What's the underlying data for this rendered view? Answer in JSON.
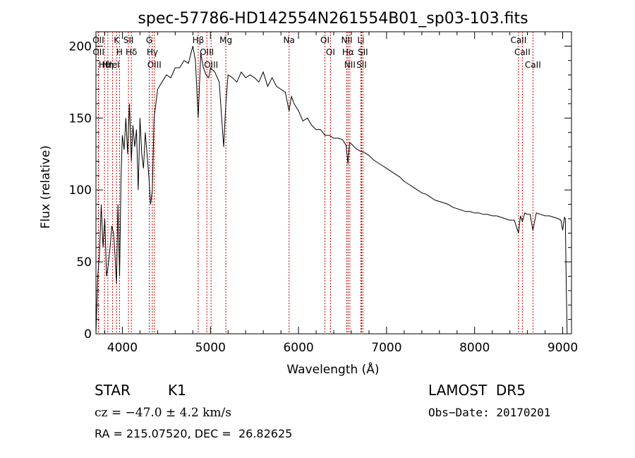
{
  "chart_data": {
    "type": "line",
    "title": "spec-57786-HD142554N261554B01_sp03-103.fits",
    "xlabel": "Wavelength (Å)",
    "ylabel": "Flux (relative)",
    "xlim": [
      3700,
      9100
    ],
    "ylim": [
      0,
      210
    ],
    "xticks": [
      4000,
      5000,
      6000,
      7000,
      8000,
      9000
    ],
    "yticks": [
      0,
      50,
      100,
      150,
      200
    ],
    "grid": false,
    "series": [
      {
        "x": [
          3700,
          3720,
          3740,
          3760,
          3780,
          3800,
          3820,
          3840,
          3860,
          3880,
          3900,
          3920,
          3933,
          3950,
          3968,
          3985,
          4000,
          4020,
          4040,
          4060,
          4080,
          4102,
          4120,
          4140,
          4160,
          4180,
          4200,
          4220,
          4240,
          4260,
          4280,
          4300,
          4320,
          4340,
          4360,
          4380,
          4400,
          4450,
          4500,
          4550,
          4600,
          4650,
          4700,
          4750,
          4800,
          4830,
          4861,
          4890,
          4920,
          4950,
          4980,
          5000,
          5050,
          5100,
          5150,
          5175,
          5200,
          5250,
          5300,
          5350,
          5400,
          5450,
          5500,
          5550,
          5600,
          5650,
          5700,
          5750,
          5800,
          5850,
          5893,
          5920,
          5950,
          6000,
          6050,
          6100,
          6150,
          6200,
          6250,
          6300,
          6350,
          6400,
          6450,
          6500,
          6540,
          6563,
          6580,
          6600,
          6650,
          6700,
          6750,
          6800,
          6850,
          6900,
          6950,
          7000,
          7050,
          7100,
          7150,
          7200,
          7250,
          7300,
          7350,
          7400,
          7450,
          7500,
          7550,
          7600,
          7650,
          7700,
          7750,
          7800,
          7850,
          7900,
          7950,
          8000,
          8050,
          8100,
          8150,
          8200,
          8250,
          8300,
          8350,
          8400,
          8450,
          8498,
          8520,
          8542,
          8570,
          8600,
          8630,
          8662,
          8700,
          8750,
          8800,
          8850,
          8900,
          8950,
          8980,
          9000,
          9020,
          9030,
          9040,
          9050
        ],
        "y": [
          0,
          40,
          55,
          90,
          60,
          80,
          40,
          48,
          60,
          75,
          70,
          50,
          35,
          90,
          40,
          110,
          138,
          128,
          150,
          125,
          160,
          120,
          145,
          130,
          142,
          100,
          150,
          125,
          115,
          140,
          125,
          110,
          90,
          100,
          150,
          160,
          170,
          175,
          180,
          178,
          185,
          185,
          190,
          188,
          200,
          190,
          150,
          195,
          185,
          180,
          178,
          185,
          182,
          175,
          130,
          160,
          180,
          178,
          175,
          182,
          178,
          180,
          178,
          175,
          182,
          172,
          178,
          172,
          170,
          168,
          155,
          165,
          160,
          155,
          148,
          150,
          145,
          142,
          142,
          138,
          138,
          136,
          136,
          135,
          131,
          118,
          133,
          132,
          129,
          127,
          126,
          124,
          121,
          119,
          117,
          115,
          113,
          111,
          109,
          106,
          104,
          102,
          100,
          98,
          97,
          95,
          93,
          92,
          91,
          90,
          88,
          87,
          86,
          85,
          85,
          84,
          84,
          83,
          83,
          82,
          82,
          81,
          80,
          79,
          79,
          70,
          82,
          78,
          84,
          83,
          83,
          72,
          84,
          83,
          82,
          82,
          81,
          80,
          79,
          72,
          81,
          80,
          35,
          0
        ]
      }
    ],
    "line_ids": [
      {
        "label": "Hθ",
        "x": 3797
      },
      {
        "label": "OII",
        "x": 3727
      },
      {
        "label": "OII",
        "x": 3729
      },
      {
        "label": "K",
        "x": 3934
      },
      {
        "label": "HeI",
        "x": 3889
      },
      {
        "label": "Hη",
        "x": 3835
      },
      {
        "label": "SII",
        "x": 4069
      },
      {
        "label": "H",
        "x": 3968
      },
      {
        "label": "Hδ",
        "x": 4102
      },
      {
        "label": "OIII",
        "x": 4363
      },
      {
        "label": "Hγ",
        "x": 4340
      },
      {
        "label": "G",
        "x": 4305
      },
      {
        "label": "OIII",
        "x": 4959
      },
      {
        "label": "OIII",
        "x": 5007
      },
      {
        "label": "Hβ",
        "x": 4861
      },
      {
        "label": "Mg",
        "x": 5175
      },
      {
        "label": "Na",
        "x": 5893
      },
      {
        "label": "OI",
        "x": 6300
      },
      {
        "label": "OI",
        "x": 6363
      },
      {
        "label": "Hα",
        "x": 6563
      },
      {
        "label": "NII",
        "x": 6548
      },
      {
        "label": "NII",
        "x": 6583
      },
      {
        "label": "SII",
        "x": 6716
      },
      {
        "label": "Li",
        "x": 6708
      },
      {
        "label": "SII",
        "x": 6731
      },
      {
        "label": "CaII",
        "x": 8542
      },
      {
        "label": "CaII",
        "x": 8498
      },
      {
        "label": "CaII",
        "x": 8662
      }
    ]
  },
  "info": {
    "object_class": "STAR",
    "subclass": "K1",
    "survey": "LAMOST  DR5",
    "cz": "cz = −47.0 ± 4.2 km/s",
    "obs_date": "Obs−Date: 20170201",
    "coords": "RA = 215.07520, DEC =  26.82625"
  },
  "colors": {
    "spectrum": "#000000",
    "line_markers": "#cc0000",
    "axes": "#000000"
  }
}
